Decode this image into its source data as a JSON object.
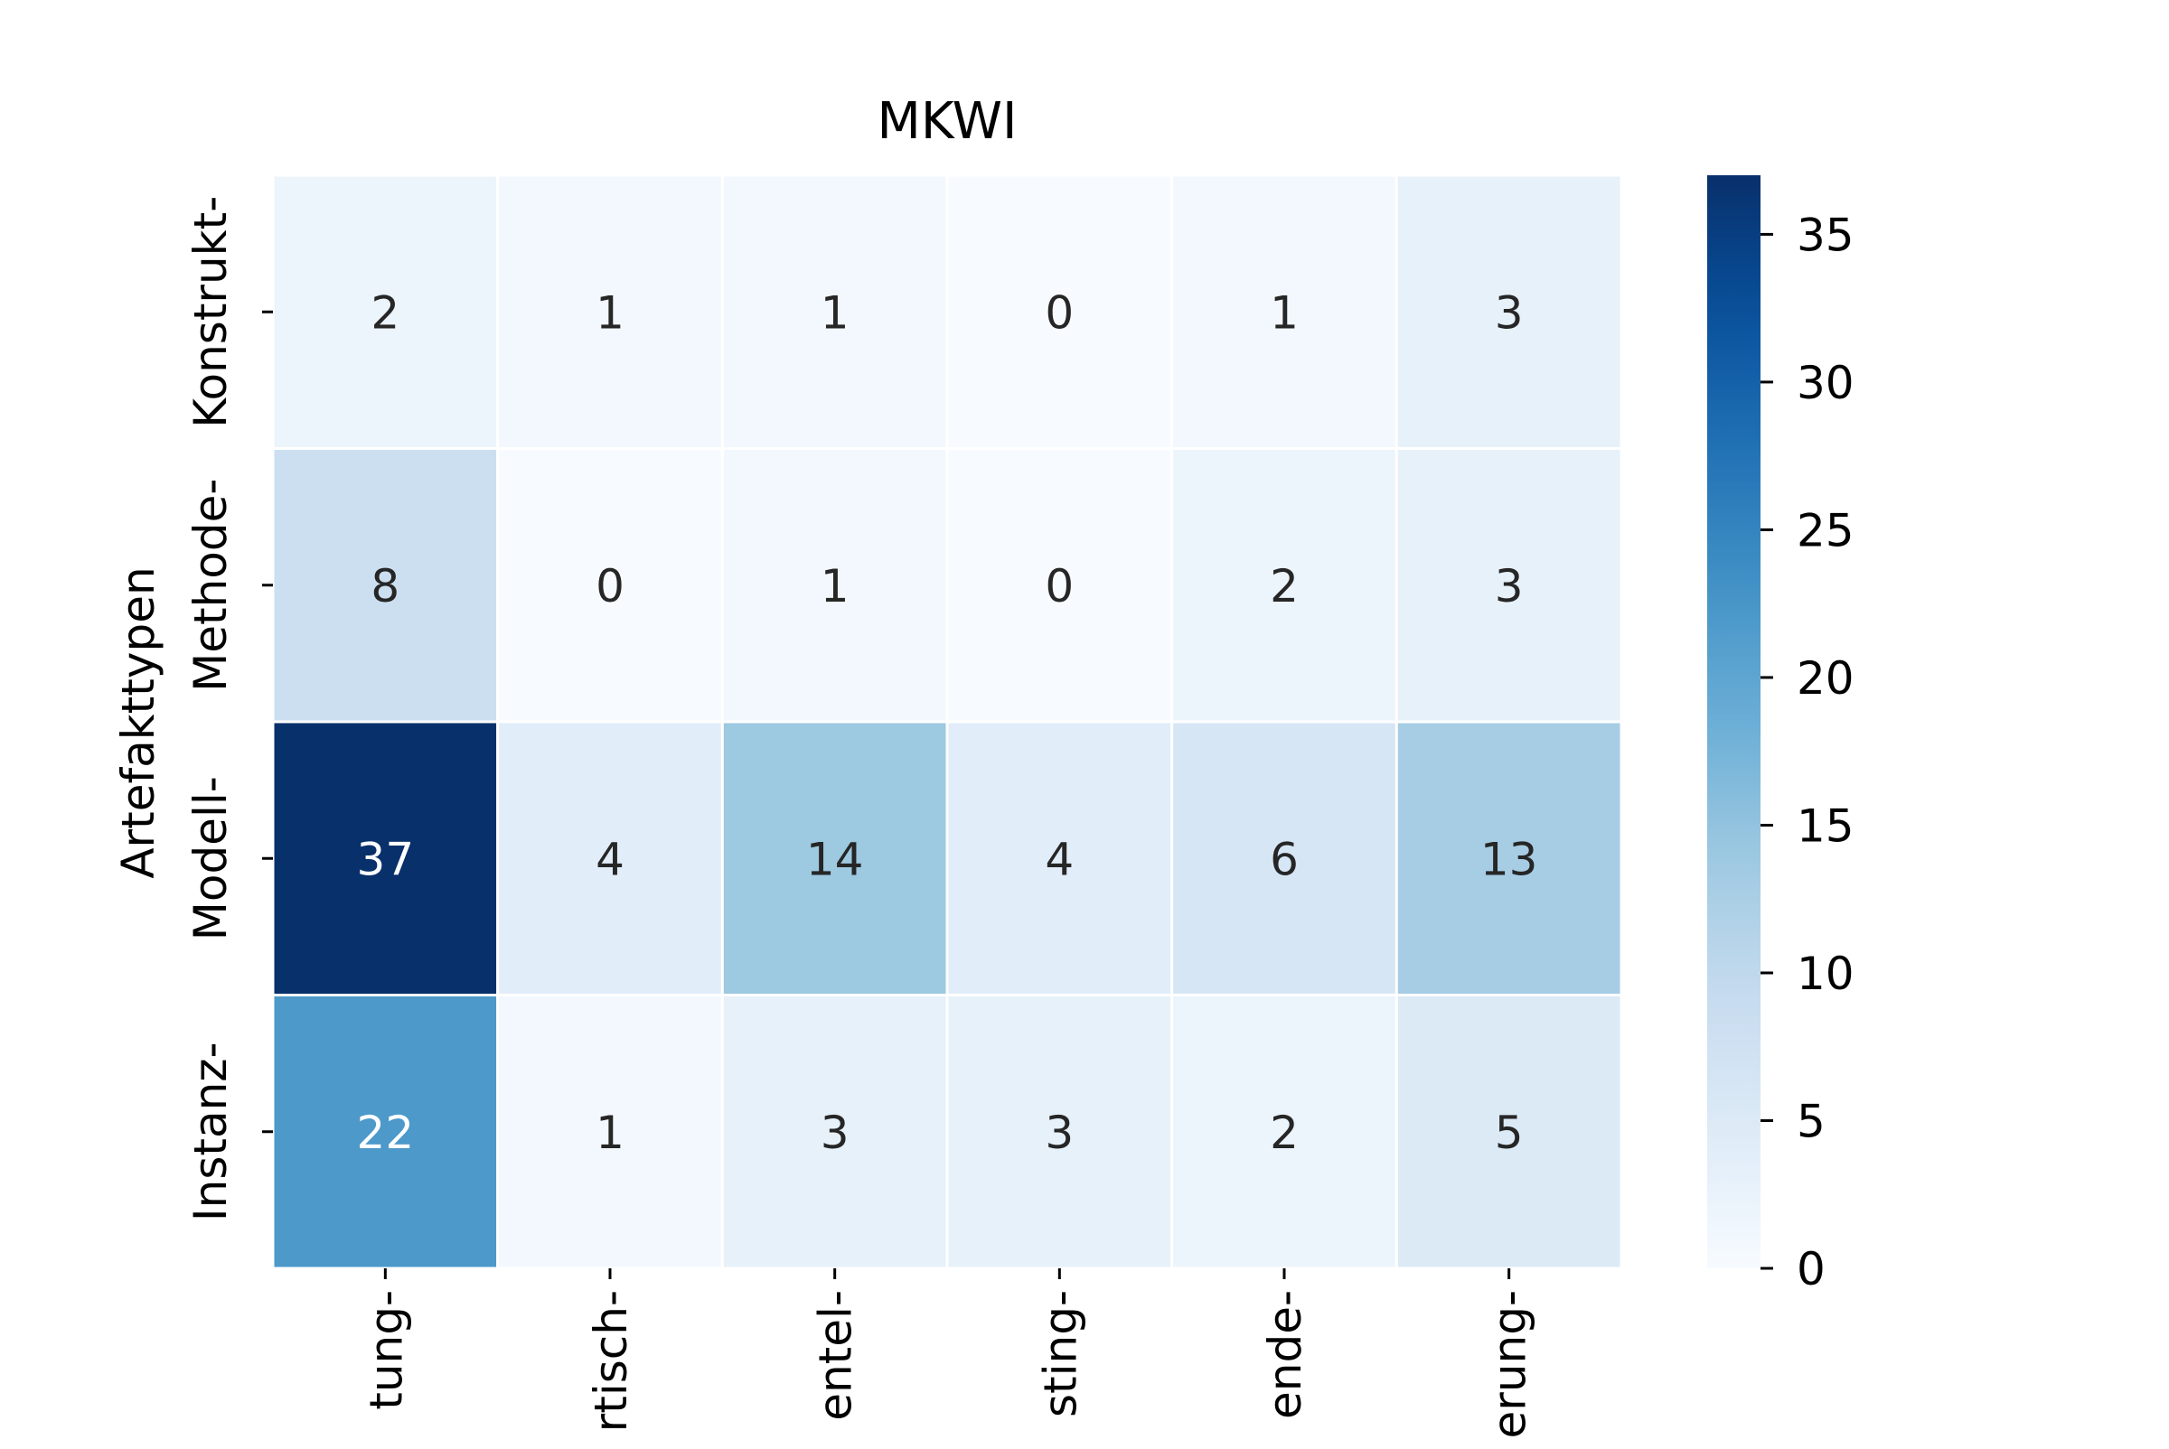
{
  "chart_data": {
    "type": "heatmap",
    "title": "MKWI",
    "xlabel": "",
    "ylabel": "Artefakttypen",
    "rows": [
      "Konstrukt-",
      "Methode-",
      "Modell-",
      "Instanz-"
    ],
    "columns": [
      "tung-",
      "rtisch-",
      "entel-",
      "sting-",
      "ende-",
      "erung-"
    ],
    "values": [
      [
        2,
        1,
        1,
        0,
        1,
        3
      ],
      [
        8,
        0,
        1,
        0,
        2,
        3
      ],
      [
        37,
        4,
        14,
        4,
        6,
        13
      ],
      [
        22,
        1,
        3,
        3,
        2,
        5
      ]
    ],
    "colormap": "Blues",
    "colorbar": {
      "min": 0,
      "max": 37,
      "ticks": [
        0,
        5,
        10,
        15,
        20,
        25,
        30,
        35
      ]
    },
    "colors": {
      "low": "#f7fbff",
      "high": "#08306b",
      "text_dark": "#262626",
      "text_light": "#ffffff",
      "cell_border": "#ffffff"
    }
  }
}
